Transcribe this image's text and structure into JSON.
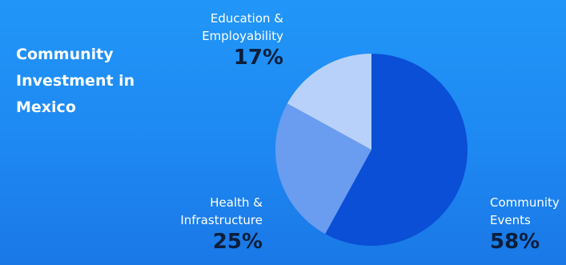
{
  "title_lines": [
    "Community",
    "Investment in",
    "Mexico"
  ],
  "colors": {
    "background_top": "#2196f8",
    "background_bottom": "#1a78e6",
    "percent_text": "#0b1e3a"
  },
  "chart_data": {
    "type": "pie",
    "title": "Community Investment in Mexico",
    "slices": [
      {
        "label_lines": [
          "Community",
          "Events"
        ],
        "label": "Community Events",
        "pct_text": "58%",
        "value": 58,
        "color": "#0a4fd6"
      },
      {
        "label_lines": [
          "Health &",
          "Infrastructure"
        ],
        "label": "Health & Infrastructure",
        "pct_text": "25%",
        "value": 25,
        "color": "#6a9cf0"
      },
      {
        "label_lines": [
          "Education &",
          "Employability"
        ],
        "label": "Education & Employability",
        "pct_text": "17%",
        "value": 17,
        "color": "#b8d1fa"
      }
    ]
  }
}
